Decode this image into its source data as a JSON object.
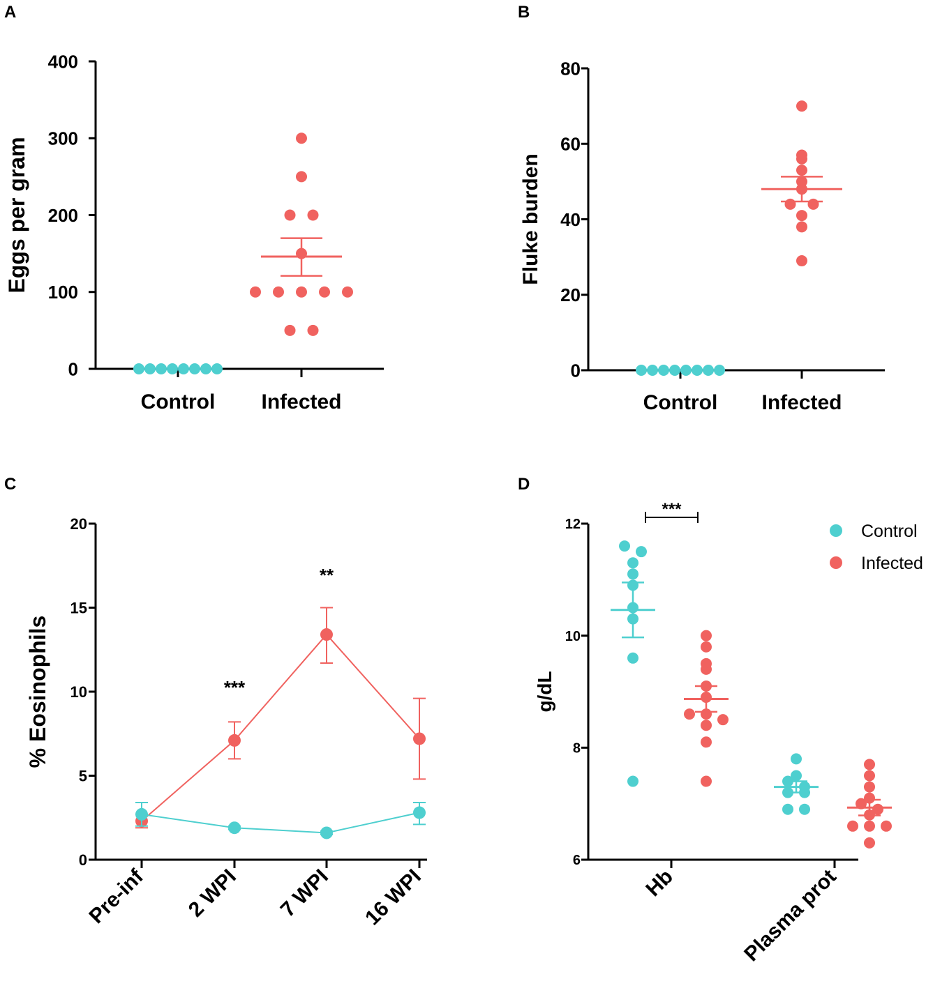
{
  "colors": {
    "control": "#4ecfcf",
    "infected": "#f0625f",
    "axis": "#000000"
  },
  "chart_data": [
    {
      "panel": "A",
      "type": "scatter",
      "ylabel": "Eggs per gram",
      "ylim": [
        0,
        400
      ],
      "yticks": [
        "0",
        "100",
        "200",
        "300",
        "400"
      ],
      "categories": [
        "Control",
        "Infected"
      ],
      "series": [
        {
          "name": "Control",
          "values": [
            0,
            0,
            0,
            0,
            0,
            0,
            0,
            0
          ]
        },
        {
          "name": "Infected",
          "values": [
            300,
            250,
            200,
            200,
            150,
            100,
            100,
            100,
            100,
            100,
            50,
            50
          ],
          "mean": 146,
          "sem_low": 121,
          "sem_high": 170
        }
      ]
    },
    {
      "panel": "B",
      "type": "scatter",
      "ylabel": "Fluke burden",
      "ylim": [
        0,
        80
      ],
      "yticks": [
        "0",
        "20",
        "40",
        "60",
        "80"
      ],
      "categories": [
        "Control",
        "Infected"
      ],
      "series": [
        {
          "name": "Control",
          "values": [
            0,
            0,
            0,
            0,
            0,
            0,
            0,
            0
          ]
        },
        {
          "name": "Infected",
          "values": [
            70,
            57,
            56,
            53,
            50,
            48,
            44,
            44,
            41,
            38,
            29
          ],
          "mean": 48,
          "sem_low": 44.7,
          "sem_high": 51.3
        }
      ]
    },
    {
      "panel": "C",
      "type": "line",
      "ylabel": "% Eosinophils",
      "ylim": [
        0,
        20
      ],
      "yticks": [
        "0",
        "5",
        "10",
        "15",
        "20"
      ],
      "categories": [
        "Pre-inf",
        "2 WPI",
        "7 WPI",
        "16 WPI"
      ],
      "series": [
        {
          "name": "Infected",
          "values": [
            2.3,
            7.1,
            13.4,
            7.2
          ],
          "err_low": [
            1.9,
            6.0,
            11.7,
            4.8
          ],
          "err_high": [
            2.7,
            8.2,
            15.0,
            9.6
          ]
        },
        {
          "name": "Control",
          "values": [
            2.7,
            1.9,
            1.6,
            2.8
          ],
          "err_low": [
            2.0,
            1.8,
            1.5,
            2.1
          ],
          "err_high": [
            3.4,
            2.0,
            1.7,
            3.4
          ]
        }
      ],
      "annotations": [
        {
          "category": "2 WPI",
          "text": "***"
        },
        {
          "category": "7 WPI",
          "text": "**"
        }
      ]
    },
    {
      "panel": "D",
      "type": "scatter",
      "ylabel": "g/dL",
      "ylim": [
        6,
        12
      ],
      "yticks": [
        "6",
        "8",
        "10",
        "12"
      ],
      "categories": [
        "Hb",
        "Plasma prot"
      ],
      "legend": [
        "Control",
        "Infected"
      ],
      "legend_position": "top-right",
      "series": [
        {
          "name": "Control",
          "category": "Hb",
          "values": [
            11.6,
            11.5,
            11.3,
            11.1,
            10.9,
            10.5,
            10.3,
            9.6,
            7.4
          ],
          "mean": 10.46,
          "sem_low": 9.97,
          "sem_high": 10.95
        },
        {
          "name": "Infected",
          "category": "Hb",
          "values": [
            10.0,
            9.8,
            9.5,
            9.4,
            9.1,
            8.9,
            8.6,
            8.6,
            8.5,
            8.4,
            8.1,
            7.4
          ],
          "mean": 8.87,
          "sem_low": 8.64,
          "sem_high": 9.1
        },
        {
          "name": "Control",
          "category": "Plasma prot",
          "values": [
            7.8,
            7.5,
            7.4,
            7.3,
            7.2,
            7.2,
            6.9,
            6.9
          ],
          "mean": 7.3,
          "sem_low": 7.2,
          "sem_high": 7.4
        },
        {
          "name": "Infected",
          "category": "Plasma prot",
          "values": [
            7.7,
            7.5,
            7.3,
            7.1,
            7.0,
            6.9,
            6.8,
            6.6,
            6.6,
            6.6,
            6.3
          ],
          "mean": 6.93,
          "sem_low": 6.79,
          "sem_high": 7.07
        }
      ],
      "significance": {
        "between": [
          "Control",
          "Infected"
        ],
        "category": "Hb",
        "text": "***"
      }
    }
  ]
}
